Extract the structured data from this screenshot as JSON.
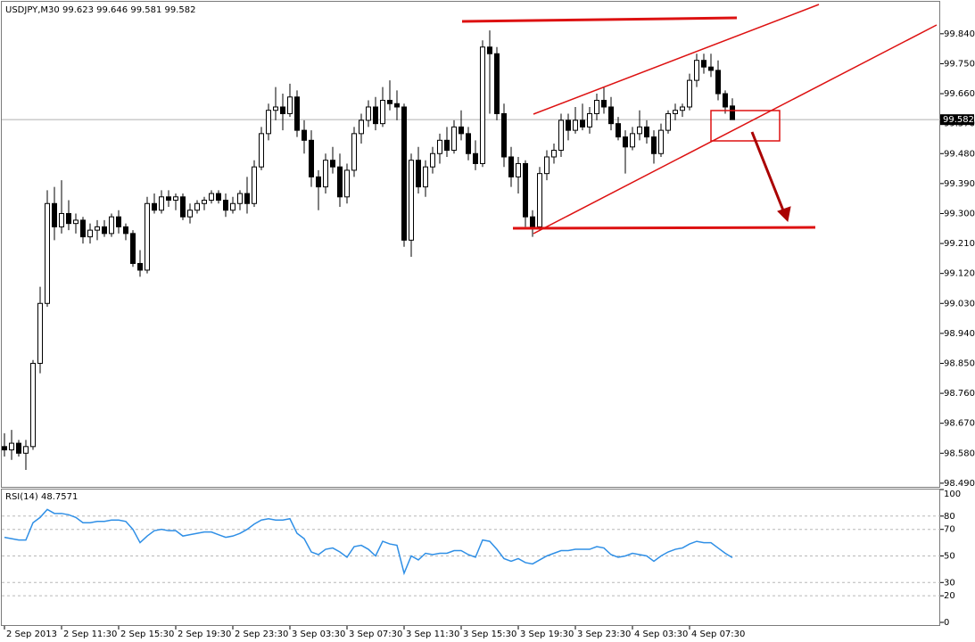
{
  "chart_data": [
    {
      "type": "candlestick",
      "symbol": "USDJPY,M30",
      "up_color": "#ffffff",
      "down_color": "#000000",
      "outline_color": "#000000",
      "categories": [
        "2 Sep 2013",
        null,
        null,
        null,
        null,
        null,
        null,
        null,
        "2 Sep 11:30",
        null,
        null,
        null,
        null,
        null,
        null,
        null,
        "2 Sep 15:30",
        null,
        null,
        null,
        null,
        null,
        null,
        null,
        "2 Sep 19:30",
        null,
        null,
        null,
        null,
        null,
        null,
        null,
        "2 Sep 23:30",
        null,
        null,
        null,
        null,
        null,
        null,
        null,
        "3 Sep 03:30",
        null,
        null,
        null,
        null,
        null,
        null,
        null,
        "3 Sep 07:30",
        null,
        null,
        null,
        null,
        null,
        null,
        null,
        "3 Sep 11:30",
        null,
        null,
        null,
        null,
        null,
        null,
        null,
        "3 Sep 15:30",
        null,
        null,
        null,
        null,
        null,
        null,
        null,
        "3 Sep 19:30",
        null,
        null,
        null,
        null,
        null,
        null,
        null,
        "3 Sep 23:30",
        null,
        null,
        null,
        null,
        null,
        null,
        null,
        "4 Sep 03:30",
        null,
        null,
        null,
        null,
        null,
        null,
        null,
        "4 Sep 07:30",
        null,
        null,
        null,
        null,
        null,
        null
      ],
      "open": [
        98.6,
        98.59,
        98.61,
        98.58,
        98.6,
        98.85,
        99.03,
        99.33,
        99.26,
        99.3,
        99.27,
        99.28,
        99.23,
        99.25,
        99.26,
        99.24,
        99.29,
        99.26,
        99.24,
        99.15,
        99.13,
        99.33,
        99.31,
        99.35,
        99.34,
        99.35,
        99.29,
        99.31,
        99.33,
        99.34,
        99.36,
        99.34,
        99.31,
        99.33,
        99.36,
        99.33,
        99.44,
        99.54,
        99.61,
        99.62,
        99.6,
        99.65,
        99.55,
        99.52,
        99.41,
        99.38,
        99.46,
        99.44,
        99.35,
        99.43,
        99.54,
        99.58,
        99.62,
        99.57,
        99.64,
        99.63,
        99.62,
        99.22,
        99.46,
        99.38,
        99.44,
        99.48,
        99.52,
        99.49,
        99.56,
        99.54,
        99.48,
        99.45,
        99.8,
        99.78,
        99.6,
        99.47,
        99.41,
        99.45,
        99.29,
        99.26,
        99.42,
        99.47,
        99.49,
        99.58,
        99.55,
        99.58,
        99.56,
        99.6,
        99.64,
        99.62,
        99.57,
        99.53,
        99.5,
        99.54,
        99.56,
        99.53,
        99.48,
        99.55,
        99.6,
        99.61,
        99.62,
        99.7,
        99.76,
        99.74,
        99.73,
        99.66,
        99.623
      ],
      "high": [
        98.64,
        98.65,
        98.62,
        98.62,
        98.86,
        99.08,
        99.37,
        99.38,
        99.4,
        99.34,
        99.3,
        99.29,
        99.27,
        99.28,
        99.28,
        99.3,
        99.31,
        99.27,
        99.25,
        99.19,
        99.35,
        99.36,
        99.37,
        99.37,
        99.36,
        99.36,
        99.33,
        99.34,
        99.35,
        99.37,
        99.37,
        99.36,
        99.35,
        99.37,
        99.41,
        99.46,
        99.56,
        99.63,
        99.68,
        99.66,
        99.69,
        99.67,
        99.58,
        99.55,
        99.43,
        99.48,
        99.5,
        99.48,
        99.45,
        99.56,
        99.6,
        99.64,
        99.65,
        99.68,
        99.7,
        99.67,
        99.63,
        99.48,
        99.5,
        99.46,
        99.5,
        99.54,
        99.56,
        99.58,
        99.61,
        99.56,
        99.52,
        99.82,
        99.85,
        99.8,
        99.63,
        99.5,
        99.47,
        99.46,
        99.31,
        99.44,
        99.49,
        99.51,
        99.6,
        99.6,
        99.62,
        99.63,
        99.62,
        99.66,
        99.68,
        99.65,
        99.59,
        99.55,
        99.56,
        99.61,
        99.58,
        99.55,
        99.57,
        99.61,
        99.63,
        99.63,
        99.72,
        99.78,
        99.78,
        99.78,
        99.76,
        99.67,
        99.646
      ],
      "low": [
        98.57,
        98.56,
        98.57,
        98.53,
        98.59,
        98.82,
        99.02,
        99.22,
        99.24,
        99.25,
        99.24,
        99.21,
        99.21,
        99.22,
        99.23,
        99.23,
        99.24,
        99.22,
        99.14,
        99.11,
        99.12,
        99.3,
        99.3,
        99.32,
        99.31,
        99.28,
        99.27,
        99.3,
        99.31,
        99.33,
        99.33,
        99.29,
        99.3,
        99.31,
        99.3,
        99.32,
        99.43,
        99.52,
        99.58,
        99.55,
        99.59,
        99.53,
        99.48,
        99.38,
        99.31,
        99.36,
        99.42,
        99.32,
        99.33,
        99.41,
        99.51,
        99.56,
        99.55,
        99.56,
        99.61,
        99.58,
        99.2,
        99.17,
        99.36,
        99.35,
        99.42,
        99.45,
        99.47,
        99.48,
        99.52,
        99.46,
        99.43,
        99.44,
        99.6,
        99.58,
        99.44,
        99.38,
        99.36,
        99.26,
        99.23,
        99.25,
        99.4,
        99.45,
        99.47,
        99.52,
        99.54,
        99.55,
        99.54,
        99.58,
        99.6,
        99.55,
        99.52,
        99.42,
        99.49,
        99.52,
        99.51,
        99.45,
        99.47,
        99.54,
        99.58,
        99.59,
        99.61,
        99.68,
        99.72,
        99.71,
        99.64,
        99.6,
        99.581
      ],
      "close": [
        98.59,
        98.61,
        98.58,
        98.6,
        98.85,
        99.03,
        99.33,
        99.26,
        99.3,
        99.27,
        99.28,
        99.23,
        99.25,
        99.26,
        99.24,
        99.29,
        99.26,
        99.24,
        99.15,
        99.13,
        99.33,
        99.31,
        99.35,
        99.34,
        99.35,
        99.29,
        99.31,
        99.33,
        99.34,
        99.36,
        99.34,
        99.31,
        99.33,
        99.36,
        99.33,
        99.44,
        99.54,
        99.61,
        99.62,
        99.6,
        99.65,
        99.55,
        99.52,
        99.41,
        99.38,
        99.46,
        99.44,
        99.35,
        99.43,
        99.54,
        99.58,
        99.62,
        99.57,
        99.64,
        99.63,
        99.62,
        99.22,
        99.46,
        99.38,
        99.44,
        99.48,
        99.52,
        99.49,
        99.56,
        99.54,
        99.48,
        99.45,
        99.8,
        99.78,
        99.6,
        99.47,
        99.41,
        99.45,
        99.29,
        99.26,
        99.42,
        99.47,
        99.49,
        99.58,
        99.55,
        99.58,
        99.56,
        99.6,
        99.64,
        99.62,
        99.57,
        99.53,
        99.5,
        99.54,
        99.56,
        99.53,
        99.48,
        99.55,
        99.6,
        99.61,
        99.62,
        99.7,
        99.76,
        99.74,
        99.73,
        99.66,
        99.62,
        99.582
      ],
      "ylim": [
        98.479,
        99.936
      ],
      "yticks": [
        {
          "value": 99.84,
          "label": "99.840"
        },
        {
          "value": 99.75,
          "label": "99.750"
        },
        {
          "value": 99.66,
          "label": "99.660"
        },
        {
          "value": 99.57,
          "label": "99.570"
        },
        {
          "value": 99.48,
          "label": "99.480"
        },
        {
          "value": 99.39,
          "label": "99.390"
        },
        {
          "value": 99.3,
          "label": "99.300"
        },
        {
          "value": 99.21,
          "label": "99.210"
        },
        {
          "value": 99.12,
          "label": "99.120"
        },
        {
          "value": 99.03,
          "label": "99.030"
        },
        {
          "value": 98.94,
          "label": "98.940"
        },
        {
          "value": 98.85,
          "label": "98.850"
        },
        {
          "value": 98.76,
          "label": "98.760"
        },
        {
          "value": 98.67,
          "label": "98.670"
        },
        {
          "value": 98.58,
          "label": "98.580"
        },
        {
          "value": 98.49,
          "label": "98.490"
        }
      ],
      "grid": false
    },
    {
      "type": "line",
      "title": "RSI(14)",
      "color": "#2f8fe6",
      "values": [
        64,
        63,
        62,
        62,
        75,
        79,
        85,
        82,
        82,
        81,
        79,
        75,
        75,
        76,
        76,
        77,
        77,
        76,
        70,
        60,
        65,
        69,
        70,
        69,
        69,
        65,
        66,
        67,
        68,
        68,
        66,
        64,
        65,
        67,
        70,
        74,
        77,
        78,
        77,
        77,
        78,
        67,
        63,
        53,
        51,
        55,
        56,
        53,
        49,
        57,
        58,
        55,
        50,
        61,
        59,
        58,
        37,
        50,
        47,
        52,
        51,
        52,
        52,
        54,
        54,
        51,
        49,
        62,
        61,
        55,
        48,
        46,
        48,
        45,
        44,
        47,
        50,
        52,
        54,
        54,
        55,
        55,
        55,
        57,
        56,
        51,
        49,
        50,
        52,
        51,
        50,
        46,
        50,
        53,
        55,
        56,
        59,
        61,
        60,
        60,
        56,
        52,
        48.7571
      ],
      "ylim": [
        -2.7,
        100
      ],
      "yticks": [
        100,
        80,
        70,
        50,
        30,
        20,
        0
      ],
      "levels": [
        80,
        70,
        50,
        30,
        20
      ]
    }
  ]
}
